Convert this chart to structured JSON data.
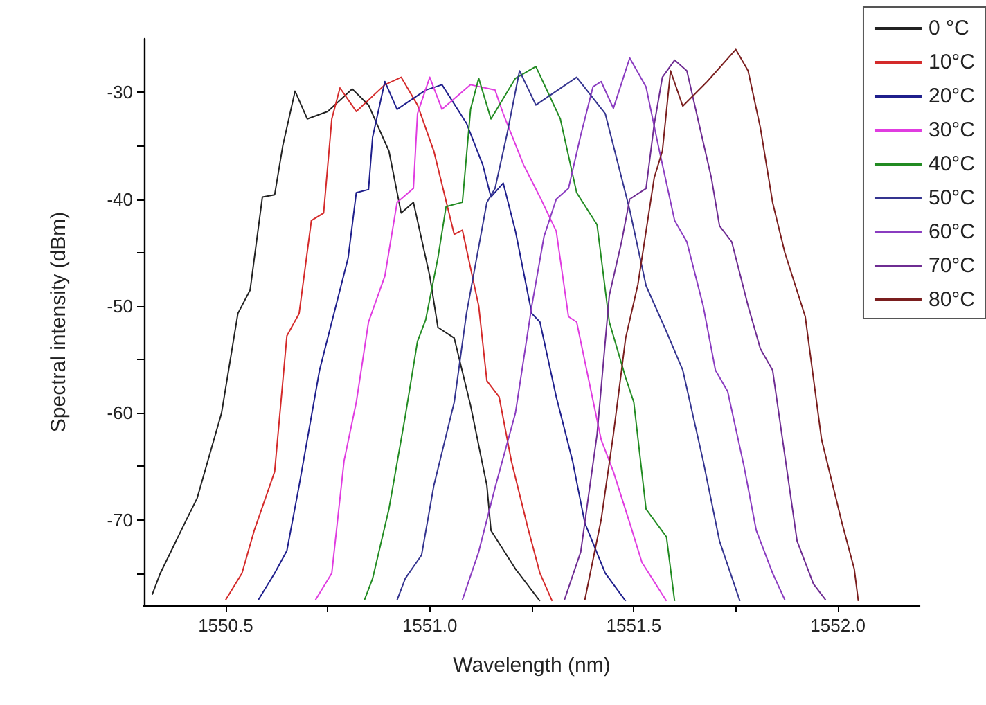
{
  "chart_data": {
    "type": "line",
    "xlabel": "Wavelength (nm)",
    "ylabel": "Spectral intensity (dBm)",
    "xlim": [
      1550.3,
      1552.2
    ],
    "xticks": [
      {
        "value": 1550.5,
        "label": "1550.5"
      },
      {
        "value": 1550.75,
        "label": null
      },
      {
        "value": 1551,
        "label": "1551.0"
      },
      {
        "value": 1551.25,
        "label": null
      },
      {
        "value": 1551.5,
        "label": "1551.5"
      },
      {
        "value": 1551.75,
        "label": null
      },
      {
        "value": 1552,
        "label": "1552.0"
      }
    ],
    "ylim": [
      -78,
      -25
    ],
    "yticks": [
      {
        "value": -75,
        "label": null
      },
      -70,
      {
        "value": -65,
        "label": null
      },
      -60,
      {
        "value": -55,
        "label": null
      },
      -50,
      {
        "value": -45,
        "label": null
      },
      -40,
      {
        "value": -35,
        "label": null
      },
      -30
    ],
    "legend": "top right",
    "series": [
      {
        "name": "0 °C",
        "color": "#222222",
        "x": [
          1550.32,
          1550.34,
          1550.4,
          1550.43,
          1550.49,
          1550.53,
          1550.56,
          1550.59,
          1550.62,
          1550.64,
          1550.67,
          1550.7,
          1550.75,
          1550.81,
          1550.85,
          1550.9,
          1550.93,
          1550.96,
          1551.0,
          1551.02,
          1551.06,
          1551.1,
          1551.14,
          1551.15,
          1551.21,
          1551.27
        ],
        "values": [
          -77,
          -75,
          -70.3,
          -68,
          -60,
          -50.7,
          -48.5,
          -39.8,
          -39.6,
          -35,
          -29.9,
          -32.5,
          -31.8,
          -29.7,
          -31.2,
          -35.5,
          -41.3,
          -40.3,
          -47.2,
          -52,
          -53,
          -59.3,
          -66.8,
          -71,
          -74.6,
          -77.6
        ]
      },
      {
        "name": "10°C",
        "color": "#d42a2a",
        "x": [
          1550.5,
          1550.54,
          1550.57,
          1550.62,
          1550.65,
          1550.68,
          1550.71,
          1550.74,
          1550.76,
          1550.78,
          1550.82,
          1550.89,
          1550.93,
          1550.97,
          1551.01,
          1551.06,
          1551.08,
          1551.12,
          1551.14,
          1551.17,
          1551.2,
          1551.24,
          1551.27,
          1551.3
        ],
        "values": [
          -77.5,
          -75,
          -71,
          -65.5,
          -52.8,
          -50.7,
          -42,
          -41.3,
          -32.5,
          -29.6,
          -31.8,
          -29.3,
          -28.6,
          -31.2,
          -35.5,
          -43.3,
          -42.9,
          -50,
          -57,
          -58.5,
          -64.5,
          -70.7,
          -75,
          -77.6
        ]
      },
      {
        "name": "20°C",
        "color": "#1f1f8c",
        "x": [
          1550.58,
          1550.62,
          1550.65,
          1550.68,
          1550.73,
          1550.76,
          1550.8,
          1550.82,
          1550.85,
          1550.86,
          1550.89,
          1550.92,
          1550.99,
          1551.03,
          1551.09,
          1551.13,
          1551.15,
          1551.18,
          1551.21,
          1551.25,
          1551.27,
          1551.31,
          1551.35,
          1551.38,
          1551.43,
          1551.48
        ],
        "values": [
          -77.5,
          -75,
          -72.9,
          -66.8,
          -56,
          -51.5,
          -45.5,
          -39.4,
          -39.1,
          -34.2,
          -29,
          -31.6,
          -29.8,
          -29.3,
          -32.9,
          -36.8,
          -39.8,
          -38.5,
          -43,
          -50.7,
          -51.5,
          -58.5,
          -64.5,
          -70.3,
          -75,
          -77.6
        ]
      },
      {
        "name": "30°C",
        "color": "#e03ce0",
        "x": [
          1550.72,
          1550.76,
          1550.79,
          1550.82,
          1550.85,
          1550.89,
          1550.92,
          1550.96,
          1550.97,
          1551.0,
          1551.03,
          1551.1,
          1551.16,
          1551.18,
          1551.23,
          1551.27,
          1551.31,
          1551.34,
          1551.36,
          1551.42,
          1551.45,
          1551.49,
          1551.52,
          1551.58
        ],
        "values": [
          -77.5,
          -75,
          -64.5,
          -59,
          -51.5,
          -47.2,
          -40.3,
          -39,
          -32,
          -28.6,
          -31.6,
          -29.3,
          -29.8,
          -32,
          -36.8,
          -39.8,
          -43,
          -51,
          -51.5,
          -62.5,
          -65.5,
          -70.3,
          -74,
          -77.6
        ]
      },
      {
        "name": "40°C",
        "color": "#228b22",
        "x": [
          1550.84,
          1550.86,
          1550.9,
          1550.94,
          1550.97,
          1550.99,
          1551.02,
          1551.04,
          1551.08,
          1551.1,
          1551.12,
          1551.15,
          1551.21,
          1551.26,
          1551.32,
          1551.36,
          1551.41,
          1551.44,
          1551.48,
          1551.5,
          1551.53,
          1551.58,
          1551.6
        ],
        "values": [
          -77.5,
          -75.5,
          -69,
          -60.3,
          -53.3,
          -51.3,
          -45.5,
          -40.7,
          -40.3,
          -31.6,
          -28.7,
          -32.5,
          -28.7,
          -27.6,
          -32.5,
          -39.4,
          -42.4,
          -51.5,
          -56.7,
          -59,
          -69,
          -71.6,
          -77.6
        ]
      },
      {
        "name": "50°C",
        "color": "#34348f",
        "x": [
          1550.92,
          1550.94,
          1550.98,
          1551.01,
          1551.06,
          1551.09,
          1551.14,
          1551.16,
          1551.19,
          1551.22,
          1551.26,
          1551.36,
          1551.43,
          1551.49,
          1551.53,
          1551.58,
          1551.62,
          1551.67,
          1551.71,
          1551.76
        ],
        "values": [
          -77.5,
          -75.5,
          -73.3,
          -66.8,
          -59,
          -50.7,
          -40.3,
          -39,
          -33.8,
          -28,
          -31.2,
          -28.6,
          -32,
          -41,
          -48.1,
          -52.4,
          -56,
          -64.5,
          -72,
          -77.6
        ]
      },
      {
        "name": "60°C",
        "color": "#8a3cc0",
        "x": [
          1551.08,
          1551.12,
          1551.16,
          1551.21,
          1551.25,
          1551.28,
          1551.31,
          1551.34,
          1551.37,
          1551.4,
          1551.42,
          1551.45,
          1551.49,
          1551.53,
          1551.56,
          1551.6,
          1551.63,
          1551.67,
          1551.7,
          1551.73,
          1551.77,
          1551.8,
          1551.84,
          1551.87
        ],
        "values": [
          -77.5,
          -73,
          -67,
          -60,
          -50,
          -43.5,
          -40,
          -39,
          -34,
          -29.5,
          -29,
          -31.5,
          -26.8,
          -29.5,
          -35,
          -42,
          -44,
          -50,
          -56,
          -58,
          -65,
          -71,
          -75,
          -77.5
        ]
      },
      {
        "name": "70°C",
        "color": "#6e2c92",
        "x": [
          1551.33,
          1551.37,
          1551.41,
          1551.44,
          1551.47,
          1551.49,
          1551.53,
          1551.55,
          1551.57,
          1551.6,
          1551.63,
          1551.66,
          1551.69,
          1551.71,
          1551.74,
          1551.78,
          1551.81,
          1551.84,
          1551.87,
          1551.9,
          1551.94,
          1551.97
        ],
        "values": [
          -77.5,
          -73,
          -62,
          -49,
          -44,
          -40,
          -39,
          -33,
          -28.6,
          -27,
          -28,
          -33,
          -38,
          -42.5,
          -44,
          -50,
          -54,
          -56,
          -64,
          -72,
          -76,
          -77.5
        ]
      },
      {
        "name": "80°C",
        "color": "#7a1e1e",
        "x": [
          1551.38,
          1551.42,
          1551.45,
          1551.48,
          1551.51,
          1551.53,
          1551.55,
          1551.57,
          1551.59,
          1551.62,
          1551.68,
          1551.75,
          1551.78,
          1551.81,
          1551.84,
          1551.87,
          1551.92,
          1551.96,
          1552.01,
          1552.04,
          1552.05
        ],
        "values": [
          -77.5,
          -70,
          -62,
          -53,
          -48,
          -43,
          -38,
          -35.5,
          -28,
          -31.3,
          -29,
          -26,
          -28,
          -33.3,
          -40.3,
          -45,
          -51,
          -62.5,
          -70.3,
          -74.6,
          -77.6
        ]
      }
    ]
  }
}
